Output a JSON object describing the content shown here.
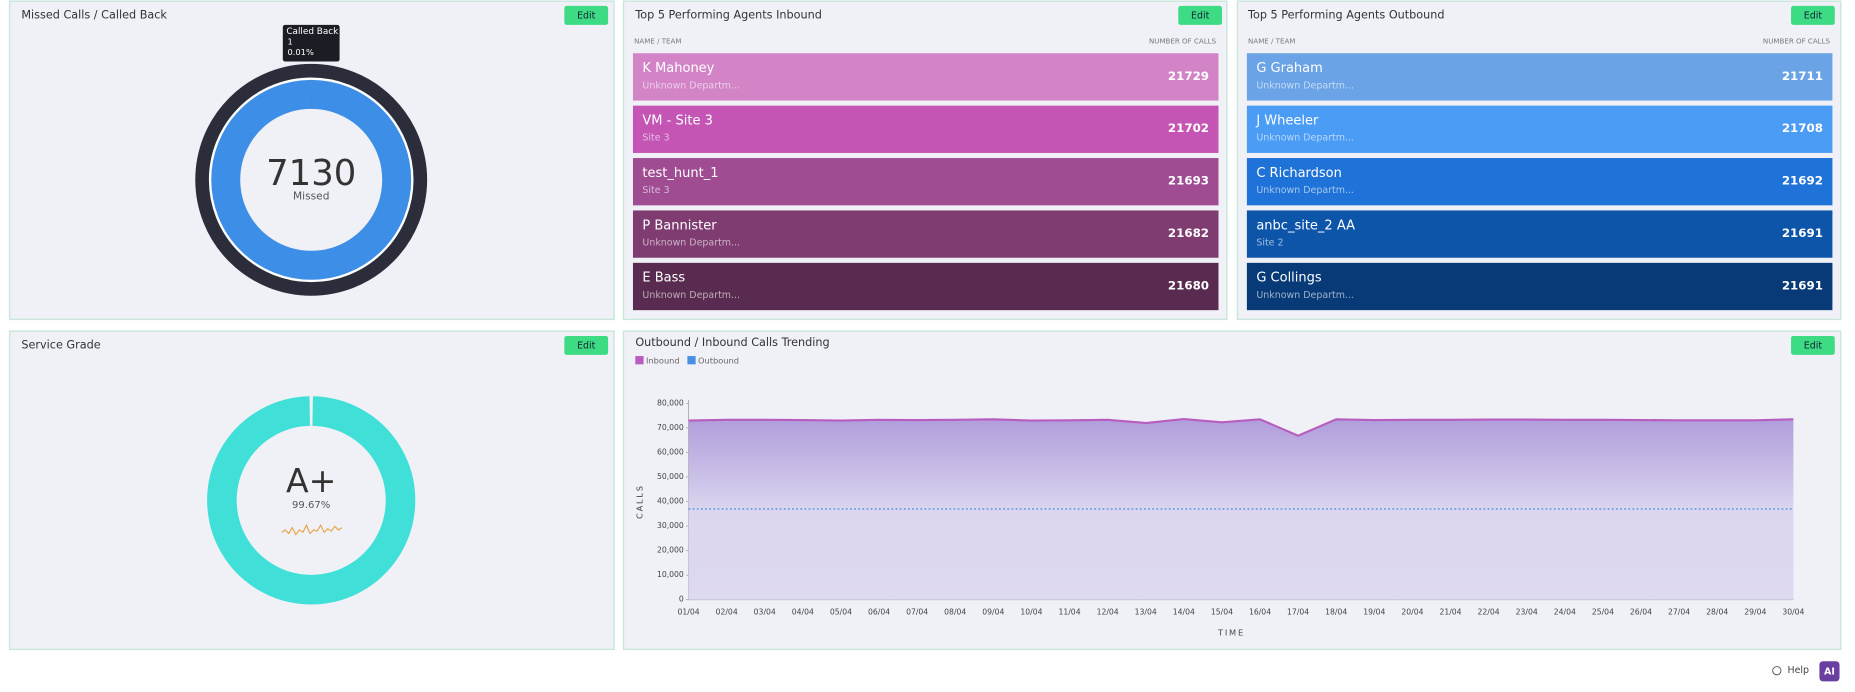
{
  "edit_label": "Edit",
  "chart_data": [
    {
      "type": "donut",
      "title": "Missed Calls / Called Back",
      "categories": [
        "Missed",
        "Called Back"
      ],
      "values": [
        7130,
        1
      ],
      "colors": [
        "#3d8ee6",
        "#2b2d3a"
      ],
      "tooltip_percent": "0.01%"
    },
    {
      "type": "gauge",
      "title": "Service Grade",
      "grade": "A+",
      "values": [
        99.67
      ],
      "value_labels": [
        "99.67%"
      ],
      "color": "#40e0d8"
    },
    {
      "type": "area",
      "title": "Outbound / Inbound Calls Trending",
      "ylabel": "CALLS",
      "xlabel": "TIME",
      "categories": [
        "01/04",
        "02/04",
        "03/04",
        "04/04",
        "05/04",
        "06/04",
        "07/04",
        "08/04",
        "09/04",
        "10/04",
        "11/04",
        "12/04",
        "13/04",
        "14/04",
        "15/04",
        "16/04",
        "17/04",
        "18/04",
        "19/04",
        "20/04",
        "21/04",
        "22/04",
        "23/04",
        "24/04",
        "25/04",
        "26/04",
        "27/04",
        "28/04",
        "29/04",
        "30/04"
      ],
      "series": [
        {
          "name": "Inbound",
          "color": "#b85cbf",
          "values": [
            73000,
            73300,
            73300,
            73200,
            73000,
            73300,
            73200,
            73300,
            73500,
            73000,
            73100,
            73300,
            72000,
            73600,
            72300,
            73500,
            66800,
            73500,
            73200,
            73300,
            73300,
            73400,
            73400,
            73300,
            73300,
            73200,
            73100,
            73100,
            73100,
            73500
          ]
        },
        {
          "name": "Outbound",
          "color": "#4a90e2",
          "values": [
            37000,
            37000,
            37000,
            37000,
            37000,
            37000,
            37000,
            37000,
            37000,
            37000,
            37000,
            37000,
            37000,
            37000,
            37000,
            37000,
            37000,
            37000,
            37000,
            37000,
            37000,
            37000,
            37000,
            37000,
            37000,
            37000,
            37000,
            37000,
            37000,
            37000
          ]
        }
      ],
      "ylim": [
        0,
        80000
      ],
      "yticks": [
        0,
        {
          "value": 10000,
          "label": "10,000"
        },
        {
          "value": 20000,
          "label": "20,000"
        },
        {
          "value": 30000,
          "label": "30,000"
        },
        {
          "value": 40000,
          "label": "40,000"
        },
        {
          "value": 50000,
          "label": "50,000"
        },
        {
          "value": 60000,
          "label": "60,000"
        },
        {
          "value": 70000,
          "label": "70,000"
        },
        {
          "value": 80000,
          "label": "80,000"
        }
      ]
    }
  ],
  "tables": [
    {
      "title": "Top 5 Performing Agents Inbound",
      "columns": [
        "NAME / TEAM",
        "NUMBER OF CALLS"
      ],
      "rows": [
        {
          "name": "K Mahoney",
          "team": "Unknown Departm...",
          "calls": 21729,
          "color": "#d284c7"
        },
        {
          "name": "VM - Site 3",
          "team": "Site 3",
          "calls": 21702,
          "color": "#c455b5"
        },
        {
          "name": "test_hunt_1",
          "team": "Site 3",
          "calls": 21693,
          "color": "#a04c93"
        },
        {
          "name": "P Bannister",
          "team": "Unknown Departm...",
          "calls": 21682,
          "color": "#7e3c71"
        },
        {
          "name": "E Bass",
          "team": "Unknown Departm...",
          "calls": 21680,
          "color": "#5a2b50"
        }
      ]
    },
    {
      "title": "Top 5 Performing Agents Outbound",
      "columns": [
        "NAME / TEAM",
        "NUMBER OF CALLS"
      ],
      "rows": [
        {
          "name": "G Graham",
          "team": "Unknown Departm...",
          "calls": 21711,
          "color": "#6aa3e6"
        },
        {
          "name": "J Wheeler",
          "team": "Unknown Departm...",
          "calls": 21708,
          "color": "#4b9cf5"
        },
        {
          "name": "C Richardson",
          "team": "Unknown Departm...",
          "calls": 21692,
          "color": "#1f72d8"
        },
        {
          "name": "anbc_site_2 AA",
          "team": "Site 2",
          "calls": 21691,
          "color": "#0d55a8"
        },
        {
          "name": "G Collings",
          "team": "Unknown Departm...",
          "calls": 21691,
          "color": "#083a78"
        }
      ]
    }
  ],
  "footer": {
    "help": "Help",
    "logo": "AI"
  }
}
